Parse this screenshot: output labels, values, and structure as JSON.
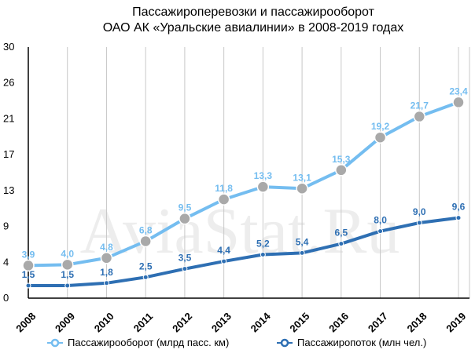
{
  "watermark": "AviaStat.Ru",
  "chart_data": {
    "type": "line",
    "title": "Пассажироперевозки и пассажирооборот",
    "subtitle": "ОАО АК «Уральские авиалинии» в 2008-2019 годах",
    "xlabel": "",
    "ylabel": "",
    "categories": [
      "2008",
      "2009",
      "2010",
      "2011",
      "2012",
      "2013",
      "2014",
      "2015",
      "2016",
      "2017",
      "2018",
      "2019"
    ],
    "ylim": [
      0,
      30
    ],
    "yticks": [
      "0",
      "4",
      "9",
      "13",
      "17",
      "21",
      "26",
      "30"
    ],
    "grid": "vertical",
    "legend_position": "bottom",
    "series": [
      {
        "name": "Пассажирооборот (млрд пасс. км)",
        "color": "#74bdf0",
        "marker_color": "#a9a9a9",
        "values": [
          3.9,
          4.0,
          4.8,
          6.8,
          9.5,
          11.8,
          13.3,
          13.1,
          15.3,
          19.2,
          21.7,
          23.4
        ],
        "labels": [
          "3,9",
          "4,0",
          "4,8",
          "6,8",
          "9,5",
          "11,8",
          "13,3",
          "13,1",
          "15,3",
          "19,2",
          "21,7",
          "23,4"
        ]
      },
      {
        "name": "Пассажиропоток (млн чел.)",
        "color": "#2e6fb3",
        "marker_color": "#2e6fb3",
        "values": [
          1.5,
          1.5,
          1.8,
          2.5,
          3.5,
          4.4,
          5.2,
          5.4,
          6.5,
          8.0,
          9.0,
          9.6
        ],
        "labels": [
          "1,5",
          "1,5",
          "1,8",
          "2,5",
          "3,5",
          "4,4",
          "5,2",
          "5,4",
          "6,5",
          "8,0",
          "9,0",
          "9,6"
        ]
      }
    ]
  }
}
